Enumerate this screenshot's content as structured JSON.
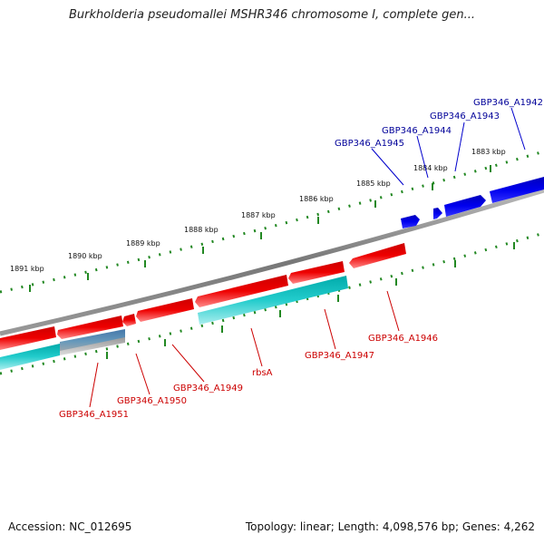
{
  "title": "Burkholderia pseudomallei MSHR346 chromosome I, complete gen...",
  "accession": "Accession: NC_012695",
  "topology": "Topology: linear; Length: 4,098,576 bp; Genes: 4,262",
  "colors": {
    "forward_gene": "#0000dd",
    "reverse_gene": "#ee0000",
    "reverse_gene_light": "#ff8888",
    "cds_cyan": "#11cccc",
    "cds_cyan_light": "#99eeee",
    "backbone": "#888888",
    "scale": "#228822",
    "forward_label": "#000099",
    "reverse_label": "#cc0000",
    "kbp_label": "#111111"
  },
  "scale_labels": [
    "1891 kbp",
    "1890 kbp",
    "1889 kbp",
    "1888 kbp",
    "1887 kbp",
    "1886 kbp",
    "1885 kbp",
    "1884 kbp",
    "1883 kbp"
  ],
  "forward_genes": [
    "GBP346_A1945",
    "GBP346_A1944",
    "GBP346_A1943",
    "GBP346_A1942"
  ],
  "reverse_genes": [
    "GBP346_A1951",
    "GBP346_A1950",
    "GBP346_A1949",
    "rbsA",
    "GBP346_A1947",
    "GBP346_A1946"
  ]
}
